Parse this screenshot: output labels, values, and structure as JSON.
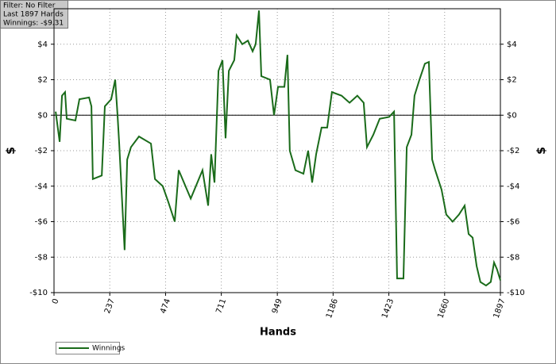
{
  "chart_data": {
    "type": "line",
    "info": [
      "Filter: No Filter",
      "Last 1897 Hands",
      "Winnings: -$9.31"
    ],
    "xlabel": "Hands",
    "ylabel": "$",
    "x": [
      7,
      24,
      34,
      47,
      54,
      91,
      108,
      149,
      159,
      165,
      203,
      216,
      243,
      260,
      270,
      277,
      300,
      311,
      327,
      361,
      412,
      429,
      462,
      486,
      513,
      530,
      581,
      631,
      655,
      668,
      682,
      699,
      716,
      729,
      743,
      766,
      776,
      800,
      824,
      844,
      857,
      871,
      881,
      918,
      935,
      952,
      979,
      992,
      1002,
      1026,
      1060,
      1080,
      1097,
      1114,
      1137,
      1161,
      1181,
      1222,
      1256,
      1289,
      1316,
      1330,
      1357,
      1384,
      1424,
      1445,
      1458,
      1485,
      1499,
      1519,
      1532,
      1553,
      1576,
      1593,
      1607,
      1620,
      1647,
      1667,
      1694,
      1721,
      1745,
      1762,
      1779,
      1796,
      1812,
      1836,
      1856,
      1870,
      1883,
      1897
    ],
    "series": [
      {
        "name": "Winnings",
        "color": "#1a6b1a",
        "values": [
          0.2,
          -1.5,
          1.1,
          1.3,
          -0.2,
          -0.3,
          0.9,
          1.0,
          0.5,
          -3.6,
          -3.4,
          0.5,
          0.9,
          2.0,
          0,
          -1.6,
          -7.6,
          -2.5,
          -1.8,
          -1.2,
          -1.6,
          -3.6,
          -4.0,
          -4.9,
          -6.0,
          -3.1,
          -4.7,
          -3.1,
          -5.1,
          -2.2,
          -3.8,
          2.5,
          3.1,
          -1.3,
          2.5,
          3.1,
          4.5,
          4.0,
          4.2,
          3.6,
          4.0,
          5.9,
          2.2,
          2.0,
          0,
          1.6,
          1.6,
          3.4,
          -2.0,
          -3.1,
          -3.3,
          -2.0,
          -3.8,
          -2.2,
          -0.7,
          -0.7,
          1.3,
          1.1,
          0.7,
          1.1,
          0.7,
          -1.8,
          -1.1,
          -0.2,
          -0.1,
          0.2,
          -9.2,
          -9.2,
          -1.8,
          -1.1,
          1.1,
          2.0,
          2.9,
          3.0,
          -2.5,
          -3.1,
          -4.2,
          -5.6,
          -6.0,
          -5.6,
          -5.1,
          -6.7,
          -6.9,
          -8.5,
          -9.4,
          -9.6,
          -9.4,
          -8.3,
          -8.7,
          -9.31
        ]
      }
    ],
    "xlim": [
      0,
      1897
    ],
    "xticks": [
      0,
      237,
      474,
      711,
      949,
      1186,
      1423,
      1660,
      1897
    ],
    "ylim": [
      -10,
      6
    ],
    "yticks": [
      {
        "value": -10,
        "label": "-$10"
      },
      {
        "value": -8,
        "label": "-$8"
      },
      {
        "value": -6,
        "label": "-$6"
      },
      {
        "value": -4,
        "label": "-$4"
      },
      {
        "value": -2,
        "label": "-$2"
      },
      {
        "value": 0,
        "label": "$0"
      },
      {
        "value": 2,
        "label": "$2"
      },
      {
        "value": 4,
        "label": "$4"
      }
    ],
    "grid": true
  }
}
